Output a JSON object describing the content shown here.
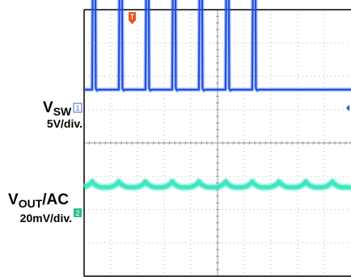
{
  "chart_data": {
    "type": "line",
    "title": "",
    "grid": true,
    "grid_style": "dotted",
    "divisions": {
      "x": 10,
      "y": 8
    },
    "trigger_marker": "T",
    "series": [
      {
        "name_main": "V",
        "name_sub": "SW",
        "scale": "5V/div.",
        "channel_badge": "1",
        "color": "#1f4fe0",
        "shape": "pulse-train",
        "baseline_div": 5.6,
        "pulse_height_div": 3.4,
        "pulse_positions_div": [
          0.3,
          1.3,
          2.3,
          3.3,
          4.3,
          5.3,
          6.3
        ],
        "pulse_width_div": 0.12
      },
      {
        "name_main": "V",
        "name_sub": "OUT",
        "name_suffix": "/AC",
        "scale": "20mV/div.",
        "channel_badge": "2",
        "color": "#3ee6c0",
        "shape": "ripple",
        "center_div": 2.6,
        "ripple_amplitude_div": 0.25,
        "ripple_period_div": 1.0
      }
    ],
    "colors": {
      "trigger": "#e8541c",
      "grid": "#b9b9b9",
      "frame": "#000000",
      "channel1_badge": "#4466cc",
      "channel2_badge": "#2bbf8a"
    }
  }
}
